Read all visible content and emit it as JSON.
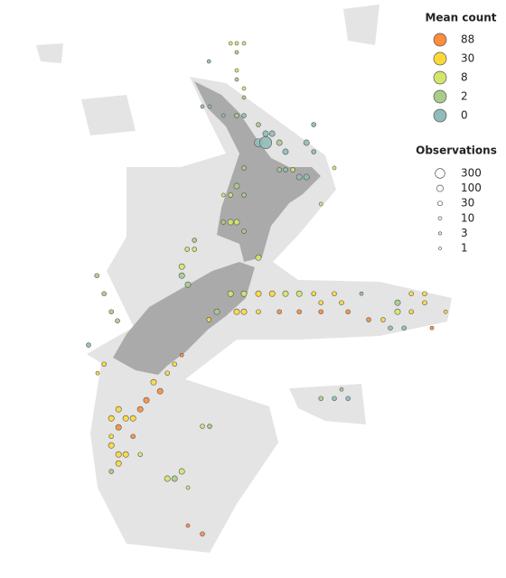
{
  "legend_mean": {
    "title": "Mean count",
    "items": [
      {
        "value": 88,
        "color": "#fd8d3c"
      },
      {
        "value": 30,
        "color": "#fcd93a"
      },
      {
        "value": 8,
        "color": "#d4e66a"
      },
      {
        "value": 2,
        "color": "#a9cc8a"
      },
      {
        "value": 0,
        "color": "#8fbcb9"
      }
    ]
  },
  "legend_obs": {
    "title": "Observations",
    "items": [
      300,
      100,
      30,
      10,
      3,
      1
    ]
  },
  "points": [
    [
      170.38,
      -34.2,
      8,
      3
    ],
    [
      170.55,
      -34.2,
      8,
      3
    ],
    [
      170.75,
      -34.2,
      8,
      3
    ],
    [
      170.55,
      -34.45,
      2,
      3
    ],
    [
      169.78,
      -34.7,
      0,
      3
    ],
    [
      170.55,
      -34.95,
      8,
      3
    ],
    [
      170.55,
      -35.2,
      2,
      3
    ],
    [
      170.75,
      -35.45,
      8,
      3
    ],
    [
      170.75,
      -35.7,
      2,
      3
    ],
    [
      169.6,
      -35.95,
      0,
      3
    ],
    [
      169.8,
      -35.95,
      0,
      3
    ],
    [
      170.18,
      -36.2,
      0,
      3
    ],
    [
      170.55,
      -36.2,
      2,
      10
    ],
    [
      170.75,
      -36.2,
      0,
      10
    ],
    [
      171.15,
      -36.45,
      2,
      10
    ],
    [
      171.35,
      -36.7,
      0,
      30
    ],
    [
      171.53,
      -36.7,
      0,
      30
    ],
    [
      171.73,
      -36.95,
      2,
      30
    ],
    [
      171.15,
      -36.95,
      0,
      100
    ],
    [
      171.35,
      -36.95,
      0,
      300
    ],
    [
      171.9,
      -37.2,
      0,
      30
    ],
    [
      172.48,
      -36.95,
      0,
      30
    ],
    [
      172.68,
      -36.45,
      0,
      10
    ],
    [
      172.68,
      -37.2,
      0,
      10
    ],
    [
      171.73,
      -37.7,
      2,
      10
    ],
    [
      171.9,
      -37.7,
      0,
      10
    ],
    [
      172.1,
      -37.7,
      8,
      10
    ],
    [
      172.28,
      -37.9,
      0,
      30
    ],
    [
      172.48,
      -37.9,
      0,
      30
    ],
    [
      173.25,
      -37.65,
      8,
      3
    ],
    [
      170.75,
      -37.65,
      2,
      10
    ],
    [
      170.55,
      -38.15,
      2,
      30
    ],
    [
      170.38,
      -38.4,
      8,
      10
    ],
    [
      170.18,
      -38.4,
      8,
      3
    ],
    [
      170.75,
      -38.4,
      2,
      10
    ],
    [
      172.88,
      -38.65,
      8,
      3
    ],
    [
      170.18,
      -39.15,
      2,
      10
    ],
    [
      170.38,
      -39.15,
      8,
      30
    ],
    [
      170.55,
      -39.15,
      8,
      30
    ],
    [
      170.75,
      -39.4,
      2,
      10
    ],
    [
      169.38,
      -39.65,
      2,
      10
    ],
    [
      169.18,
      -39.9,
      8,
      10
    ],
    [
      169.38,
      -39.9,
      8,
      10
    ],
    [
      171.15,
      -40.13,
      8,
      30
    ],
    [
      169.03,
      -40.38,
      8,
      30
    ],
    [
      169.03,
      -40.63,
      2,
      30
    ],
    [
      169.2,
      -40.88,
      2,
      30
    ],
    [
      166.68,
      -40.63,
      2,
      10
    ],
    [
      166.88,
      -41.13,
      2,
      10
    ],
    [
      167.08,
      -41.63,
      2,
      10
    ],
    [
      167.25,
      -41.88,
      2,
      10
    ],
    [
      166.45,
      -42.55,
      0,
      10
    ],
    [
      170.38,
      -41.13,
      8,
      30
    ],
    [
      170.75,
      -41.13,
      8,
      30
    ],
    [
      171.15,
      -41.13,
      30,
      30
    ],
    [
      171.53,
      -41.13,
      30,
      30
    ],
    [
      171.9,
      -41.13,
      8,
      30
    ],
    [
      172.28,
      -41.13,
      8,
      30
    ],
    [
      172.68,
      -41.13,
      30,
      10
    ],
    [
      173.25,
      -41.13,
      30,
      10
    ],
    [
      170.55,
      -41.63,
      30,
      30
    ],
    [
      170.75,
      -41.63,
      30,
      30
    ],
    [
      171.15,
      -41.63,
      30,
      10
    ],
    [
      171.73,
      -41.63,
      88,
      10
    ],
    [
      172.28,
      -41.63,
      88,
      10
    ],
    [
      172.88,
      -41.63,
      88,
      10
    ],
    [
      173.63,
      -41.63,
      88,
      10
    ],
    [
      174.2,
      -41.85,
      88,
      10
    ],
    [
      174.6,
      -41.85,
      30,
      10
    ],
    [
      175,
      -41.63,
      8,
      30
    ],
    [
      175.38,
      -41.63,
      30,
      10
    ],
    [
      175.75,
      -41.38,
      30,
      10
    ],
    [
      175.75,
      -41.13,
      30,
      10
    ],
    [
      175.38,
      -41.13,
      30,
      10
    ],
    [
      175,
      -41.38,
      2,
      30
    ],
    [
      176.33,
      -41.63,
      30,
      3
    ],
    [
      174.8,
      -42.08,
      0,
      10
    ],
    [
      175.18,
      -42.08,
      0,
      10
    ],
    [
      175.95,
      -42.08,
      88,
      3
    ],
    [
      174,
      -41.13,
      0,
      3
    ],
    [
      172.88,
      -41.38,
      30,
      10
    ],
    [
      173.45,
      -41.38,
      30,
      10
    ],
    [
      170,
      -41.63,
      2,
      30
    ],
    [
      169.78,
      -41.85,
      30,
      10
    ],
    [
      172.88,
      -44.03,
      2,
      10
    ],
    [
      173.25,
      -44.03,
      0,
      10
    ],
    [
      173.63,
      -44.03,
      0,
      10
    ],
    [
      173.45,
      -43.78,
      2,
      3
    ],
    [
      166.88,
      -43.08,
      30,
      10
    ],
    [
      166.7,
      -43.33,
      30,
      3
    ],
    [
      169.03,
      -42.83,
      88,
      3
    ],
    [
      168.83,
      -43.08,
      30,
      10
    ],
    [
      168.63,
      -43.33,
      30,
      10
    ],
    [
      168.25,
      -43.58,
      30,
      30
    ],
    [
      168.43,
      -43.83,
      88,
      30
    ],
    [
      168.05,
      -44.08,
      88,
      30
    ],
    [
      167.88,
      -44.33,
      88,
      30
    ],
    [
      167.28,
      -44.33,
      30,
      30
    ],
    [
      167.48,
      -44.58,
      30,
      30
    ],
    [
      167.68,
      -44.58,
      30,
      30
    ],
    [
      167.08,
      -44.58,
      30,
      30
    ],
    [
      167.28,
      -44.83,
      88,
      30
    ],
    [
      167.08,
      -45.08,
      30,
      10
    ],
    [
      167.68,
      -45.08,
      88,
      10
    ],
    [
      167.08,
      -45.33,
      30,
      30
    ],
    [
      167.28,
      -45.58,
      30,
      30
    ],
    [
      167.48,
      -45.58,
      30,
      30
    ],
    [
      167.88,
      -45.58,
      8,
      10
    ],
    [
      167.28,
      -45.83,
      30,
      30
    ],
    [
      167.08,
      -46.05,
      2,
      10
    ],
    [
      168.83,
      -46.25,
      2,
      30
    ],
    [
      168.63,
      -46.25,
      8,
      30
    ],
    [
      169.03,
      -46.05,
      8,
      30
    ],
    [
      169.2,
      -46.5,
      8,
      3
    ],
    [
      169.6,
      -44.8,
      8,
      10
    ],
    [
      169.8,
      -44.8,
      2,
      10
    ],
    [
      169.2,
      -47.55,
      88,
      3
    ],
    [
      169.6,
      -47.78,
      88,
      10
    ]
  ]
}
